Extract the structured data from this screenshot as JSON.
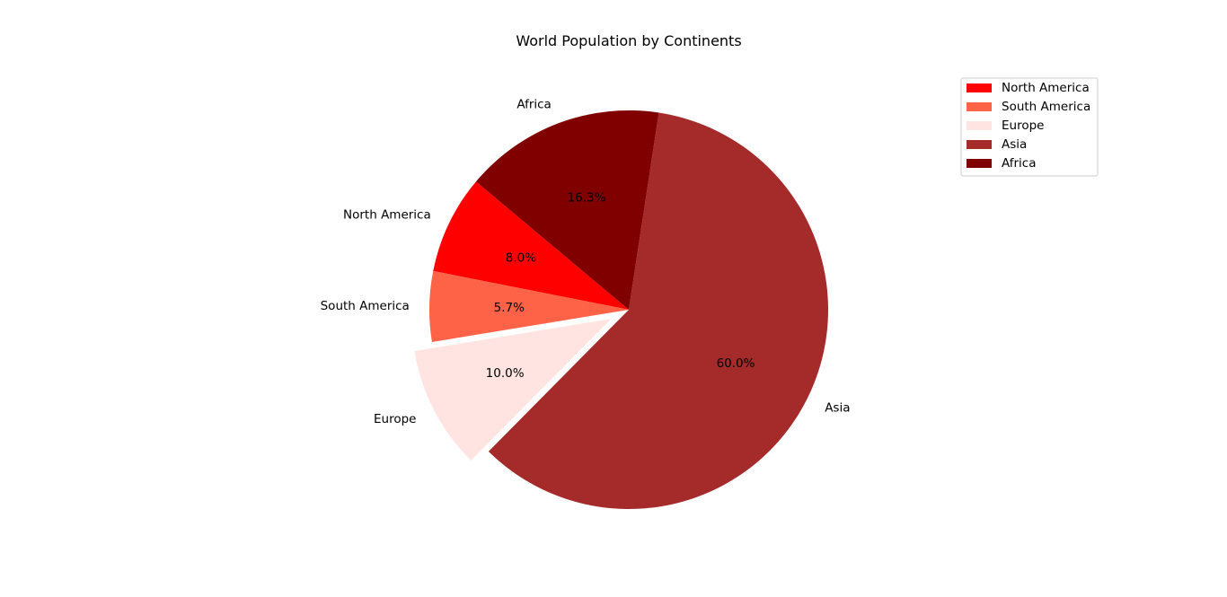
{
  "chart_data": {
    "type": "pie",
    "title": "World Population by Continents",
    "start_angle_deg": 140,
    "direction": "counterclockwise",
    "legend_position": "top-right",
    "slices": [
      {
        "label": "North America",
        "value": 8.0,
        "pct_text": "8.0%",
        "color": "#ff0000",
        "exploded": false
      },
      {
        "label": "South America",
        "value": 5.7,
        "pct_text": "5.7%",
        "color": "#ff6347",
        "exploded": false
      },
      {
        "label": "Europe",
        "value": 10.0,
        "pct_text": "10.0%",
        "color": "#ffe4e1",
        "exploded": true
      },
      {
        "label": "Asia",
        "value": 60.0,
        "pct_text": "60.0%",
        "color": "#a52a2a",
        "exploded": false
      },
      {
        "label": "Africa",
        "value": 16.3,
        "pct_text": "16.3%",
        "color": "#800000",
        "exploded": false
      }
    ]
  }
}
